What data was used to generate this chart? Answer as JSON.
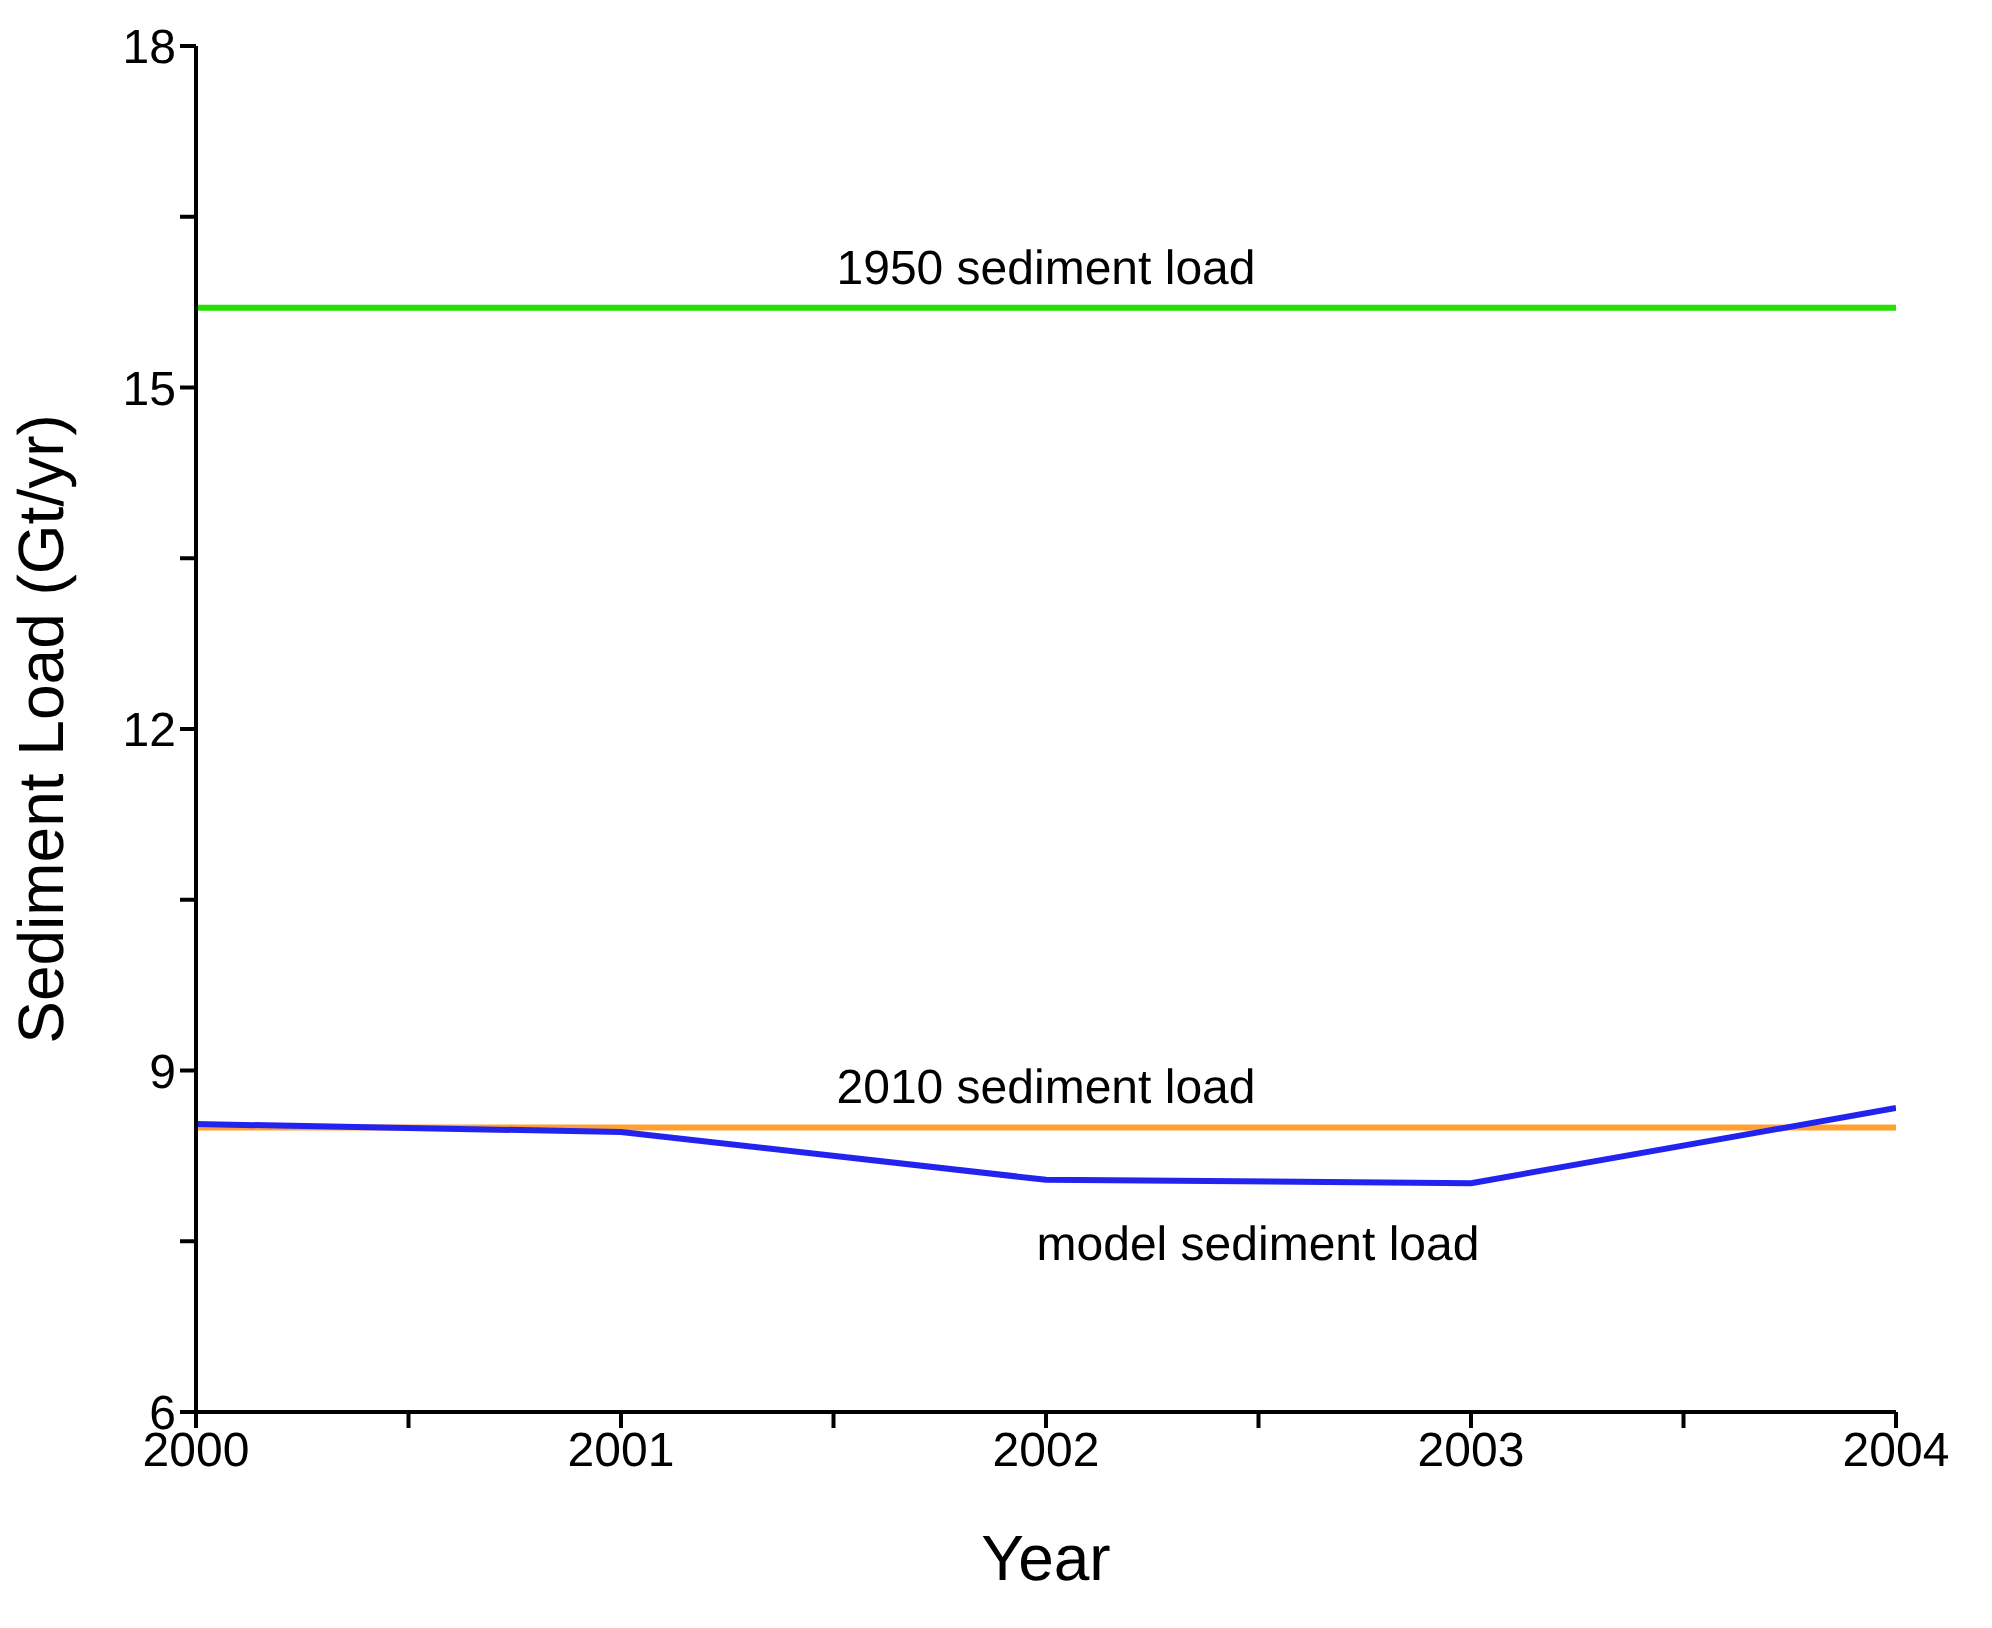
{
  "chart_data": {
    "type": "line",
    "xlabel": "Year",
    "ylabel": "Sediment Load (Gt/yr)",
    "x": [
      2000,
      2001,
      2002,
      2003,
      2004
    ],
    "series": [
      {
        "name": "model sediment load",
        "color": "#2323f0",
        "values": [
          8.53,
          8.46,
          8.04,
          8.01,
          8.67
        ]
      }
    ],
    "ref_lines": [
      {
        "axis": "y",
        "value": 15.7,
        "label": "1950 sediment load",
        "color": "#22e000"
      },
      {
        "axis": "y",
        "value": 8.5,
        "label": "2010 sediment load",
        "color": "#ffa030"
      }
    ],
    "xlim": [
      2000,
      2004
    ],
    "xticks": [
      2000,
      {
        "value": 2000.5,
        "label": null
      },
      2001,
      {
        "value": 2001.5,
        "label": null
      },
      2002,
      {
        "value": 2002.5,
        "label": null
      },
      2003,
      {
        "value": 2003.5,
        "label": null
      },
      2004
    ],
    "ylim": [
      6,
      18
    ],
    "yticks": [
      6,
      {
        "value": 7.5,
        "label": null
      },
      9,
      {
        "value": 10.5,
        "label": null
      },
      12,
      {
        "value": 13.5,
        "label": null
      },
      15,
      {
        "value": 16.5,
        "label": null
      },
      18
    ],
    "grid": false,
    "legend": false,
    "marker": "none",
    "line_style": "solid"
  }
}
